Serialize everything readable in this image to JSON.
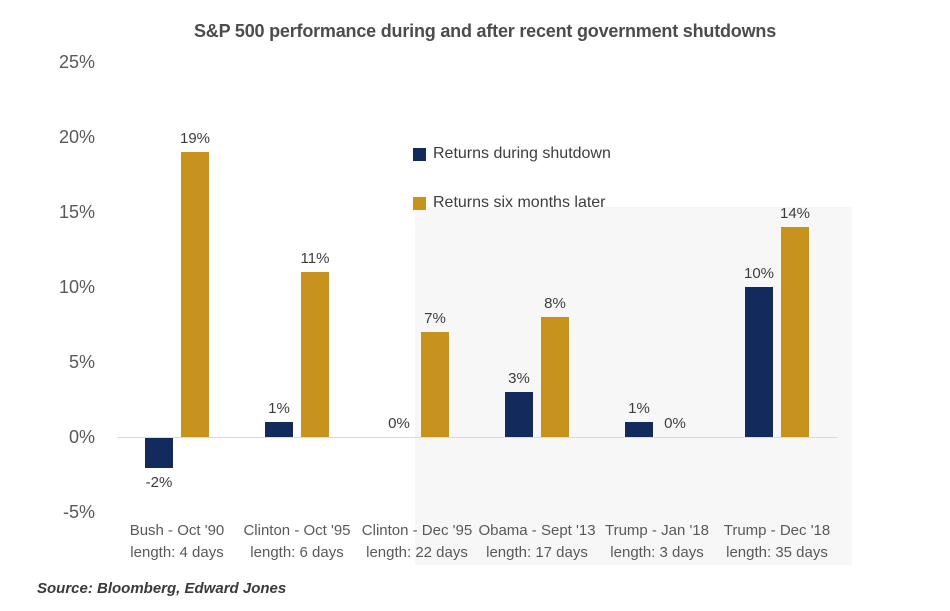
{
  "title": "S&P 500 performance during and after recent government shutdowns",
  "source_note": "Source: Bloomberg, Edward Jones",
  "legend": [
    {
      "label": "Returns during shutdown",
      "color": "#132a5c"
    },
    {
      "label": "Returns six months later",
      "color": "#c8931d"
    }
  ],
  "chart_data": {
    "type": "bar",
    "title": "S&P 500 performance during and after recent government shutdowns",
    "categories": [
      {
        "label": "Bush - Oct '90",
        "sublabel": "length: 4 days"
      },
      {
        "label": "Clinton - Oct '95",
        "sublabel": "length: 6 days"
      },
      {
        "label": "Clinton - Dec '95",
        "sublabel": "length: 22 days"
      },
      {
        "label": "Obama - Sept '13",
        "sublabel": "length: 17 days"
      },
      {
        "label": "Trump - Jan '18",
        "sublabel": "length: 3 days"
      },
      {
        "label": "Trump - Dec '18",
        "sublabel": "length: 35 days"
      }
    ],
    "series": [
      {
        "name": "Returns during shutdown",
        "color": "#132a5c",
        "values": [
          -2,
          1,
          0,
          3,
          1,
          10
        ],
        "labels": [
          "-2%",
          "1%",
          "0%",
          "3%",
          "1%",
          "10%"
        ]
      },
      {
        "name": "Returns six months later",
        "color": "#c8931d",
        "values": [
          19,
          11,
          7,
          8,
          0,
          14
        ],
        "labels": [
          "19%",
          "11%",
          "7%",
          "8%",
          "0%",
          "14%"
        ]
      }
    ],
    "y_axis": {
      "unit": "%",
      "min": -5,
      "max": 25,
      "step": 5,
      "ticks": [
        "25%",
        "20%",
        "15%",
        "10%",
        "5%",
        "0%",
        "-5%"
      ]
    },
    "grid": false,
    "legend_position": "inside-top-center",
    "axis_line_color": "#d9d9d9",
    "source": "Source: Bloomberg, Edward Jones"
  }
}
